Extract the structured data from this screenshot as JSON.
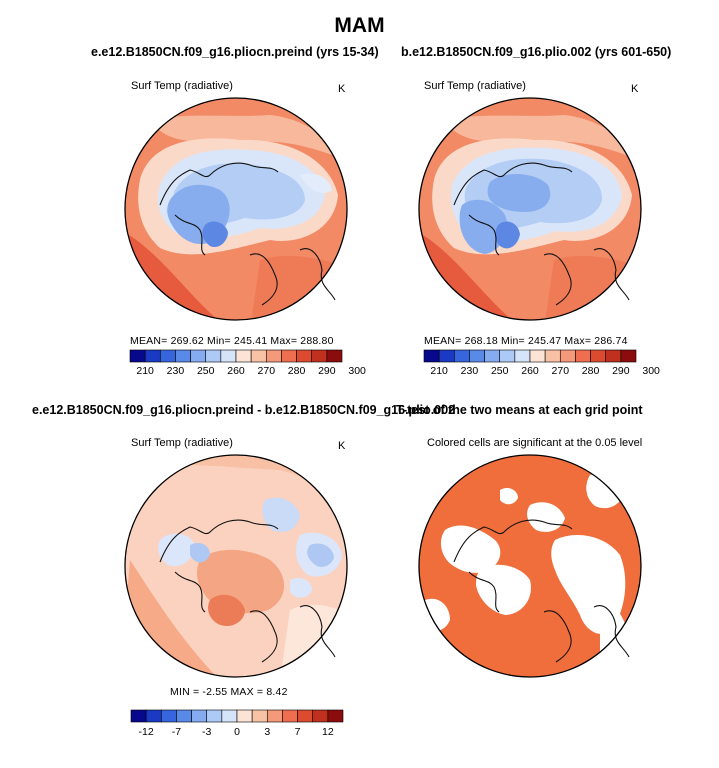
{
  "chart_data": [
    {
      "type": "heatmap",
      "projection": "polar-stereographic-north",
      "title": "e.e12.B1850CN.f09_g16.pliocn.preind (yrs 15-34)",
      "left_label": "Surf Temp (radiative)",
      "units": "K",
      "stats_text": "MEAN= 269.62   Min= 245.41   Max= 288.80",
      "stats": {
        "mean": 269.62,
        "min": 245.41,
        "max": 288.8
      },
      "colorbar": {
        "levels": [
          210,
          220,
          230,
          240,
          250,
          255,
          260,
          265,
          270,
          275,
          280,
          285,
          290,
          295,
          300
        ],
        "tick_labels": [
          "210",
          "230",
          "250",
          "260",
          "270",
          "280",
          "290",
          "300"
        ]
      }
    },
    {
      "type": "heatmap",
      "projection": "polar-stereographic-north",
      "title": "b.e12.B1850CN.f09_g16.plio.002 (yrs 601-650)",
      "left_label": "Surf Temp (radiative)",
      "units": "K",
      "stats_text": "MEAN= 268.18   Min= 245.47   Max= 286.74",
      "stats": {
        "mean": 268.18,
        "min": 245.47,
        "max": 286.74
      },
      "colorbar": {
        "levels": [
          210,
          220,
          230,
          240,
          250,
          255,
          260,
          265,
          270,
          275,
          280,
          285,
          290,
          295,
          300
        ],
        "tick_labels": [
          "210",
          "230",
          "250",
          "260",
          "270",
          "280",
          "290",
          "300"
        ]
      }
    },
    {
      "type": "heatmap",
      "projection": "polar-stereographic-north",
      "title": "e.e12.B1850CN.f09_g16.pliocn.preind - b.e12.B1850CN.f09_g16.plio.002",
      "left_label": "Surf Temp (radiative)",
      "units": "K",
      "stats_text": "MIN =  -2.55  MAX =   8.42",
      "stats": {
        "min": -2.55,
        "max": 8.42
      },
      "colorbar": {
        "levels": [
          -12,
          -10,
          -7,
          -5,
          -3,
          -1,
          0,
          1,
          3,
          5,
          7,
          10,
          12
        ],
        "tick_labels": [
          "-12",
          "-7",
          "-3",
          "0",
          "3",
          "7",
          "12"
        ]
      }
    },
    {
      "type": "heatmap",
      "projection": "polar-stereographic-north",
      "title": "T-test of the two means at each grid point",
      "left_label": "Colored cells are significant at the 0.05 level"
    }
  ],
  "page": {
    "title": "MAM"
  },
  "colors": {
    "abs_scale": [
      "#08088c",
      "#1b3ac4",
      "#3765de",
      "#5a8ae8",
      "#85abf0",
      "#adc9f5",
      "#d5e4f9",
      "#fbe3d6",
      "#f8c2a6",
      "#f4997a",
      "#ef6e50",
      "#dc4a30",
      "#c0301e",
      "#8b0c0c"
    ],
    "diff_scale": [
      "#08088c",
      "#1b3ac4",
      "#3765de",
      "#5a8ae8",
      "#85abf0",
      "#adc9f5",
      "#d5e4f9",
      "#fbe3d6",
      "#f8c2a6",
      "#f4997a",
      "#ef6e50",
      "#dc4a30",
      "#c0301e",
      "#8b0c0c"
    ],
    "significant": "#ef6e3c"
  }
}
